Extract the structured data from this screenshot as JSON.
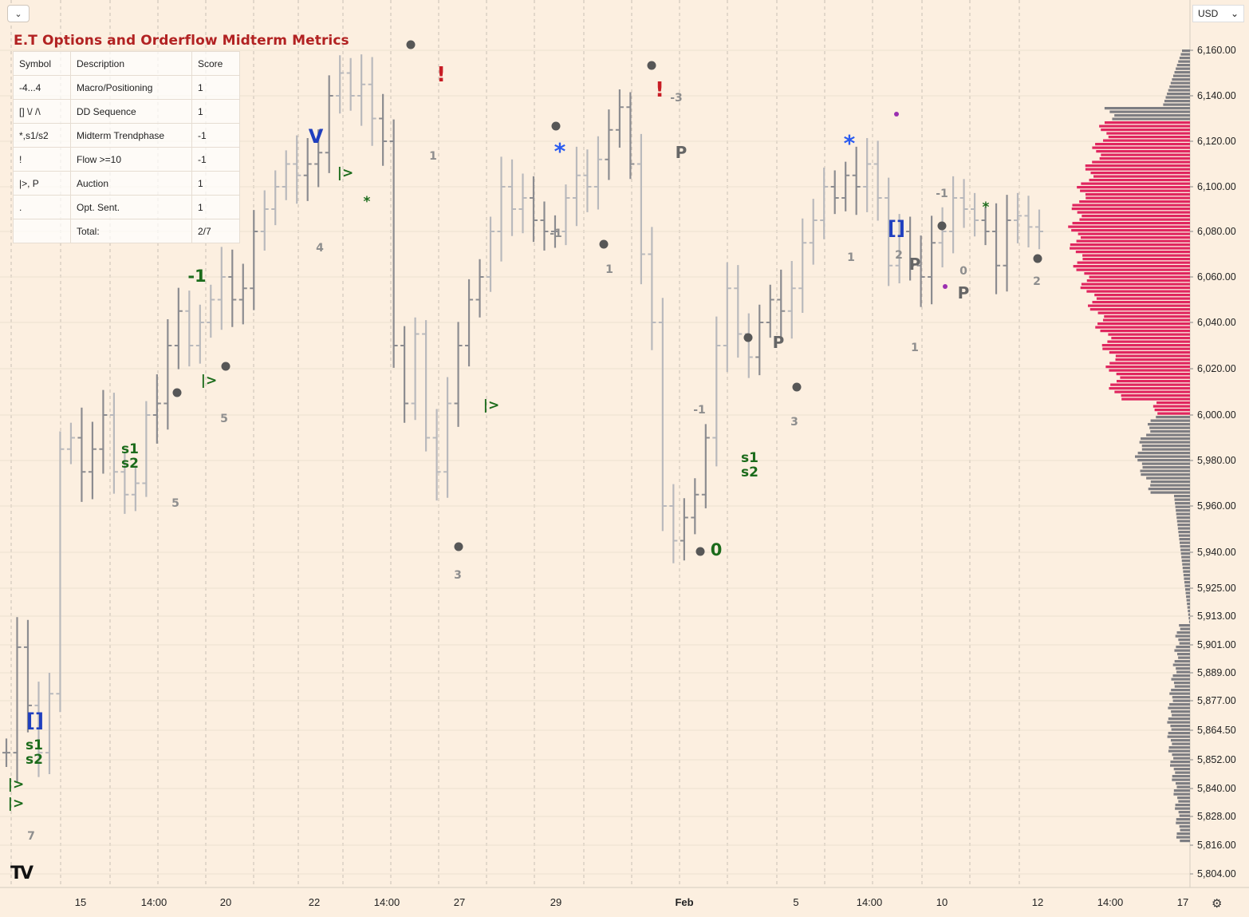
{
  "toolbar": {
    "menu_icon": "chevron-down-icon",
    "currency": "USD",
    "currency_icon": "chevron-down-icon"
  },
  "title": "E.T Options and Orderflow Midterm Metrics",
  "metrics_table": {
    "headers": [
      "Symbol",
      "Description",
      "Score"
    ],
    "rows": [
      [
        "-4...4",
        "Macro/Positioning",
        "1"
      ],
      [
        "[]  \\/ /\\",
        "DD Sequence",
        "1"
      ],
      [
        "*,s1/s2",
        "Midterm Trendphase",
        "-1"
      ],
      [
        "!",
        "Flow >=10",
        "-1"
      ],
      [
        "|>, P",
        "Auction",
        "1"
      ],
      [
        ".",
        "Opt. Sent.",
        "1"
      ],
      [
        "",
        "Total:",
        "2/7"
      ]
    ]
  },
  "chart_data": {
    "type": "ohlc-bar",
    "price_axis": {
      "labels": [
        "6,160.00",
        "6,140.00",
        "6,120.00",
        "6,100.00",
        "6,080.00",
        "6,060.00",
        "6,040.00",
        "6,020.00",
        "6,000.00",
        "5,980.00",
        "5,960.00",
        "5,940.00",
        "5,925.00",
        "5,913.00",
        "5,901.00",
        "5,889.00",
        "5,877.00",
        "5,864.50",
        "5,852.00",
        "5,840.00",
        "5,828.00",
        "5,816.00",
        "5,804.00"
      ],
      "range": [
        5804,
        6162
      ]
    },
    "time_axis": {
      "labels": [
        "15",
        "14:00",
        "20",
        "22",
        "14:00",
        "27",
        "29",
        "Feb",
        "5",
        "14:00",
        "10",
        "12",
        "14:00",
        "17"
      ],
      "bold": [
        "Feb"
      ]
    },
    "price_path": [
      5855,
      5900,
      5875,
      5855,
      5880,
      5985,
      5990,
      5975,
      5985,
      6000,
      5975,
      5965,
      5970,
      6000,
      6005,
      6030,
      6045,
      6030,
      6040,
      6050,
      6060,
      6050,
      6055,
      6080,
      6090,
      6100,
      6110,
      6105,
      6110,
      6115,
      6140,
      6150,
      6140,
      6145,
      6130,
      6120,
      6030,
      6005,
      6035,
      5990,
      5975,
      6005,
      6030,
      6050,
      6060,
      6080,
      6100,
      6090,
      6095,
      6085,
      6080,
      6080,
      6095,
      6105,
      6100,
      6112,
      6125,
      6135,
      6110,
      6070,
      6040,
      5960,
      5945,
      5955,
      5965,
      5990,
      6030,
      6055,
      6035,
      6025,
      6040,
      6050,
      6045,
      6055,
      6075,
      6085,
      6100,
      6095,
      6105,
      6100,
      6110,
      6095,
      6065,
      6080,
      6065,
      6060,
      6075,
      6080,
      6095,
      6090,
      6085,
      6080,
      6065,
      6085,
      6087,
      6082,
      6080
    ],
    "volume_profile": {
      "highlight_range": [
        6000,
        6130
      ],
      "peak_price": 6085
    },
    "annotations": [
      {
        "text": "[]",
        "kind": "dd",
        "x_label": "start"
      },
      {
        "text": "s1 s2",
        "kind": "trendphase"
      },
      {
        "text": "|>",
        "kind": "auction"
      },
      {
        "text": "|>",
        "kind": "auction"
      },
      {
        "text": "7",
        "kind": "count"
      },
      {
        "text": "s1 s2",
        "kind": "trendphase"
      },
      {
        "text": "5",
        "kind": "count"
      },
      {
        "text": "|>",
        "kind": "auction"
      },
      {
        "text": "5",
        "kind": "count"
      },
      {
        "text": "-1",
        "kind": "macro"
      },
      {
        "text": "4",
        "kind": "count"
      },
      {
        "text": "V",
        "kind": "dd"
      },
      {
        "text": "|>",
        "kind": "auction"
      },
      {
        "text": "*",
        "kind": "trendphase"
      },
      {
        "text": "!",
        "kind": "flow"
      },
      {
        "text": "1",
        "kind": "count"
      },
      {
        "text": "3",
        "kind": "count"
      },
      {
        "text": "|>",
        "kind": "auction"
      },
      {
        "text": "*",
        "kind": "trendphase-blue"
      },
      {
        "text": "-1",
        "kind": "count"
      },
      {
        "text": "1",
        "kind": "count"
      },
      {
        "text": "!",
        "kind": "flow"
      },
      {
        "text": "-3",
        "kind": "count"
      },
      {
        "text": "P",
        "kind": "auction-p"
      },
      {
        "text": "-1",
        "kind": "count"
      },
      {
        "text": "0",
        "kind": "macro"
      },
      {
        "text": "s1 s2",
        "kind": "trendphase"
      },
      {
        "text": "P",
        "kind": "auction-p"
      },
      {
        "text": "3",
        "kind": "count"
      },
      {
        "text": "*",
        "kind": "trendphase-blue"
      },
      {
        "text": "1",
        "kind": "count"
      },
      {
        "text": "[]",
        "kind": "dd"
      },
      {
        "text": "2",
        "kind": "count"
      },
      {
        "text": "P",
        "kind": "auction-p"
      },
      {
        "text": "1",
        "kind": "count"
      },
      {
        "text": "-1",
        "kind": "count"
      },
      {
        "text": "0",
        "kind": "count"
      },
      {
        "text": "P",
        "kind": "auction-p"
      },
      {
        "text": "*",
        "kind": "trendphase"
      },
      {
        "text": "2",
        "kind": "count"
      }
    ],
    "colors": {
      "background": "#fcefe0",
      "bars_light": "#b9b9bc",
      "bars_dark": "#8c8c90",
      "profile_highlight": "#e0265f",
      "profile_base": "#7d7d82",
      "green": "#1b6b1b",
      "blue": "#1f3fbf",
      "red": "#c81d25",
      "dot": "#575757"
    }
  }
}
